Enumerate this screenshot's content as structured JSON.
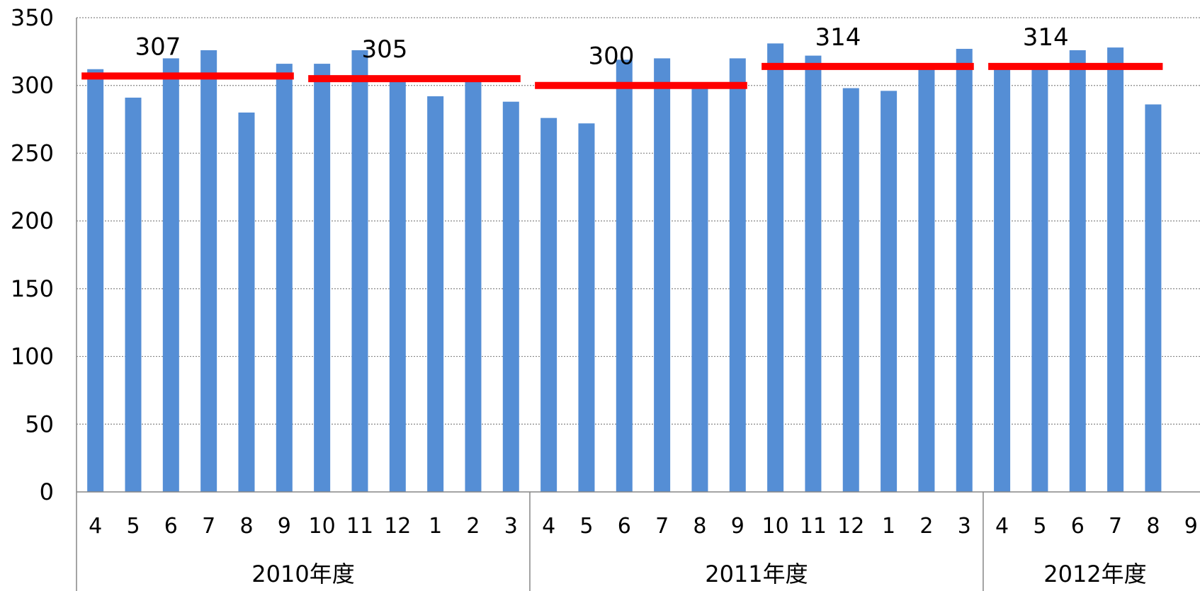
{
  "chart_data": {
    "type": "bar",
    "title": "",
    "xlabel": "",
    "ylabel": "",
    "ylim": [
      0,
      350
    ],
    "yticks": [
      0,
      50,
      100,
      150,
      200,
      250,
      300,
      350
    ],
    "grid": true,
    "legend": "none",
    "bar_color": "#558ED5",
    "average_line_color": "#FF0000",
    "axis_color": "#868686",
    "categories": [
      "4",
      "5",
      "6",
      "7",
      "8",
      "9",
      "10",
      "11",
      "12",
      "1",
      "2",
      "3",
      "4",
      "5",
      "6",
      "7",
      "8",
      "9",
      "10",
      "11",
      "12",
      "1",
      "2",
      "3",
      "4",
      "5",
      "6",
      "7",
      "8",
      "9"
    ],
    "values": [
      312,
      291,
      320,
      326,
      280,
      316,
      316,
      326,
      305,
      292,
      303,
      288,
      276,
      272,
      319,
      320,
      301,
      320,
      331,
      322,
      298,
      296,
      313,
      327,
      315,
      312,
      326,
      328,
      286,
      null
    ],
    "groups": [
      {
        "label": "2010年度",
        "start": 0,
        "count": 12
      },
      {
        "label": "2011年度",
        "start": 12,
        "count": 12
      },
      {
        "label": "2012年度",
        "start": 24,
        "count": 6
      }
    ],
    "averages": [
      {
        "label": "307",
        "value": 307,
        "start": 0,
        "end": 5
      },
      {
        "label": "305",
        "value": 305,
        "start": 6,
        "end": 11
      },
      {
        "label": "300",
        "value": 300,
        "start": 12,
        "end": 17
      },
      {
        "label": "314",
        "value": 314,
        "start": 18,
        "end": 23
      },
      {
        "label": "314",
        "value": 314,
        "start": 24,
        "end": 28
      }
    ]
  }
}
